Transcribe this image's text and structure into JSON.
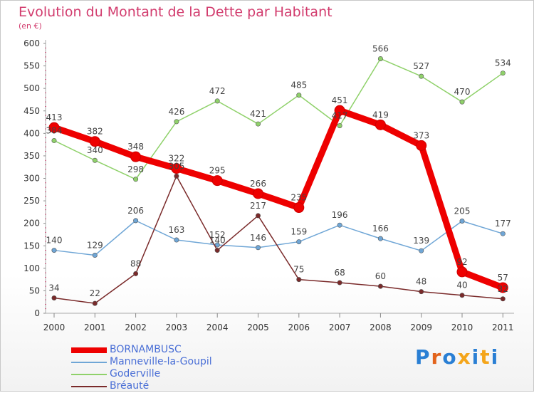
{
  "title": "Evolution du Montant de la Dette par Habitant",
  "subtitle": "(en €)",
  "logo": {
    "letters": [
      "P",
      "r",
      "o",
      "x",
      "i",
      "t",
      "i"
    ],
    "colors": [
      "#2a7fd4",
      "#e2631b",
      "#2a7fd4",
      "#f4a51a",
      "#2a7fd4",
      "#f4a51a",
      "#2a7fd4"
    ]
  },
  "chart_data": {
    "type": "line",
    "title": "Evolution du Montant de la Dette par Habitant",
    "subtitle": "(en €)",
    "categories": [
      "2000",
      "2001",
      "2002",
      "2003",
      "2004",
      "2005",
      "2006",
      "2007",
      "2008",
      "2009",
      "2010",
      "2011"
    ],
    "ylim": [
      0,
      600
    ],
    "yticks": [
      0,
      50,
      100,
      150,
      200,
      250,
      300,
      350,
      400,
      450,
      500,
      550,
      600
    ],
    "grid": false,
    "legend_position": "bottom",
    "series": [
      {
        "name": "BORNAMBUSC",
        "color": "#ee0000",
        "values": [
          413,
          382,
          348,
          322,
          295,
          266,
          235,
          451,
          419,
          373,
          92,
          57
        ],
        "width": 9
      },
      {
        "name": "Manneville-la-Goupil",
        "color": "#6fa6d6",
        "values": [
          140,
          129,
          206,
          163,
          152,
          146,
          159,
          196,
          166,
          139,
          205,
          177
        ],
        "width": 1.5
      },
      {
        "name": "Goderville",
        "color": "#8fd16a",
        "values": [
          384,
          340,
          298,
          426,
          472,
          421,
          485,
          417,
          566,
          527,
          470,
          534
        ],
        "width": 1.5
      },
      {
        "name": "Bréauté",
        "color": "#7a2a2a",
        "values": [
          34,
          22,
          88,
          305,
          140,
          217,
          75,
          68,
          60,
          48,
          40,
          32
        ],
        "width": 1.5
      }
    ]
  }
}
